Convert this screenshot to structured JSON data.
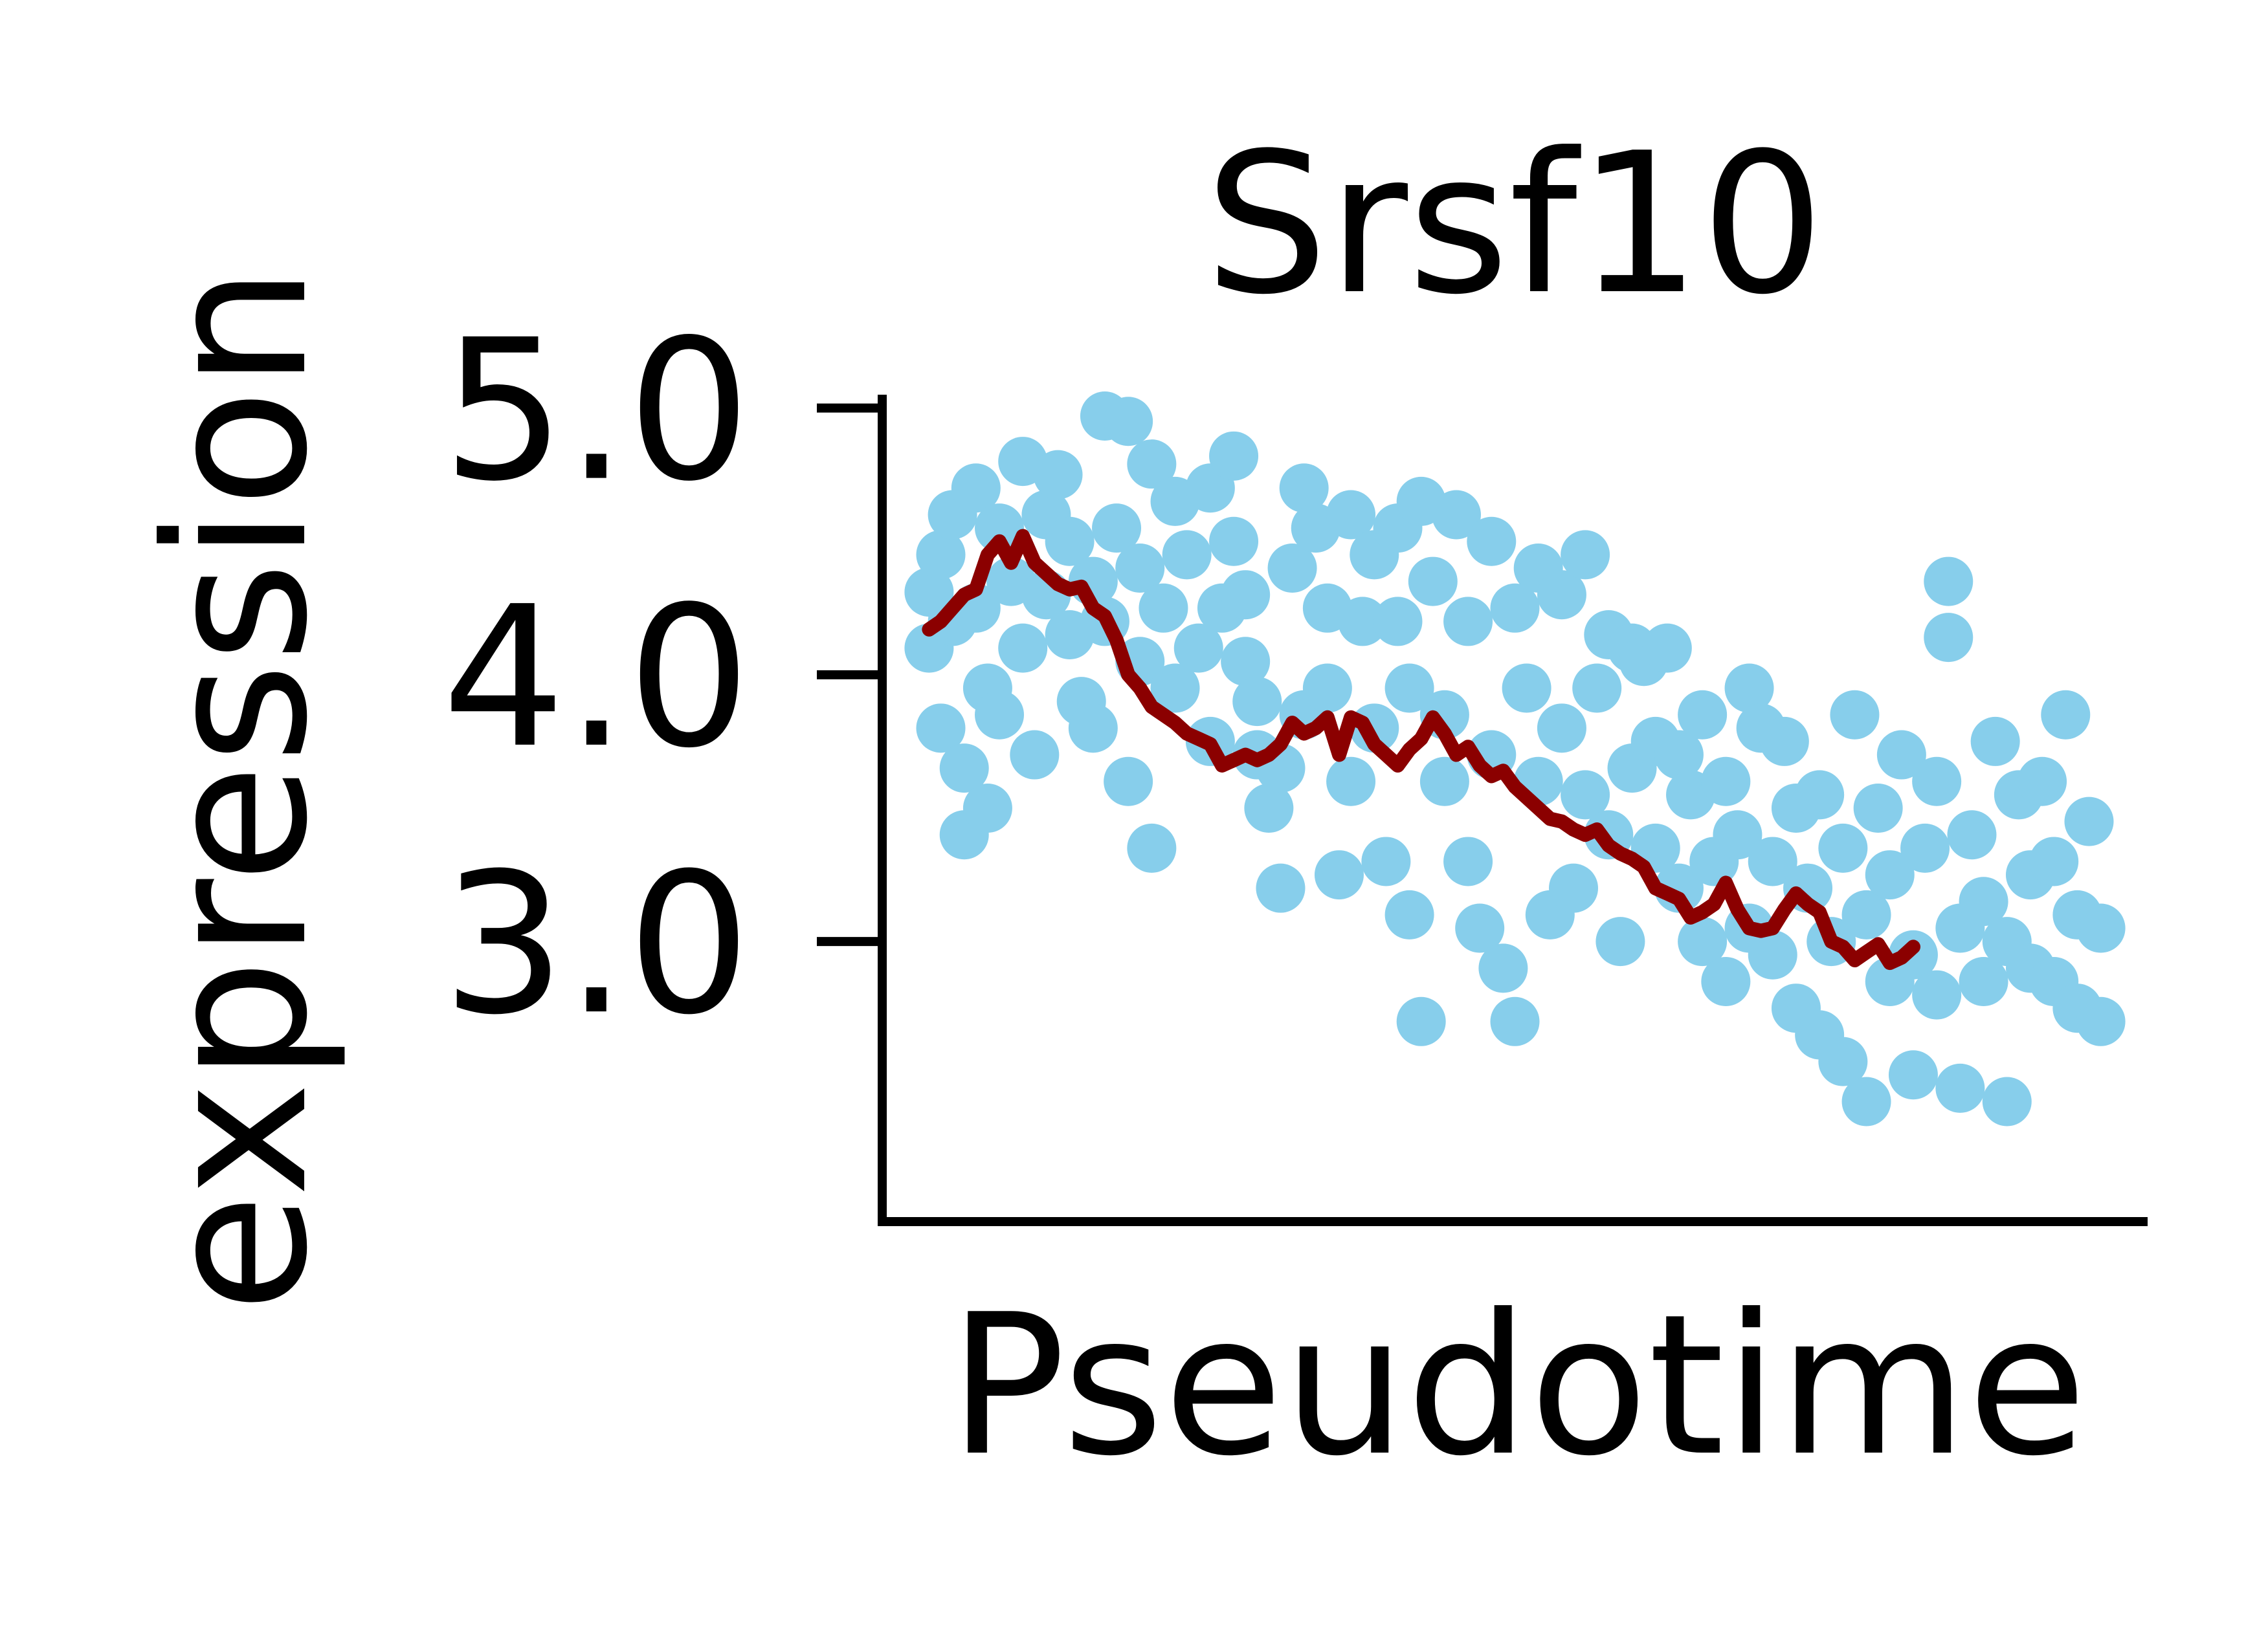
{
  "chart_data": {
    "type": "scatter",
    "title": "Srsf10",
    "xlabel": "Pseudotime",
    "ylabel": "expression",
    "yticks": [
      3.0,
      4.0,
      5.0
    ],
    "ytick_labels": [
      "3.0",
      "4.0",
      "5.0"
    ],
    "xticks": [],
    "ylim": [
      1.95,
      5.05
    ],
    "xlim": [
      -0.04,
      1.04
    ],
    "grid": false,
    "legend": "none",
    "colors": {
      "points": "#87ceeb",
      "trend": "#8b0000",
      "axis": "#000000"
    },
    "series": [
      {
        "type": "scatter",
        "points": [
          [
            0.0,
            4.31
          ],
          [
            0.0,
            4.1
          ],
          [
            0.01,
            3.8
          ],
          [
            0.01,
            4.45
          ],
          [
            0.02,
            4.6
          ],
          [
            0.02,
            4.2
          ],
          [
            0.03,
            3.65
          ],
          [
            0.03,
            3.4
          ],
          [
            0.04,
            4.7
          ],
          [
            0.04,
            4.25
          ],
          [
            0.05,
            3.95
          ],
          [
            0.05,
            3.5
          ],
          [
            0.06,
            4.55
          ],
          [
            0.06,
            3.85
          ],
          [
            0.07,
            4.35
          ],
          [
            0.08,
            4.8
          ],
          [
            0.08,
            4.1
          ],
          [
            0.09,
            3.7
          ],
          [
            0.1,
            4.6
          ],
          [
            0.1,
            4.3
          ],
          [
            0.11,
            4.75
          ],
          [
            0.12,
            4.15
          ],
          [
            0.12,
            4.5
          ],
          [
            0.13,
            3.9
          ],
          [
            0.14,
            4.35
          ],
          [
            0.14,
            3.8
          ],
          [
            0.15,
            4.97
          ],
          [
            0.15,
            4.2
          ],
          [
            0.16,
            4.55
          ],
          [
            0.17,
            4.95
          ],
          [
            0.17,
            3.6
          ],
          [
            0.18,
            4.4
          ],
          [
            0.18,
            4.05
          ],
          [
            0.19,
            3.35
          ],
          [
            0.19,
            4.79
          ],
          [
            0.2,
            4.25
          ],
          [
            0.21,
            4.65
          ],
          [
            0.21,
            3.95
          ],
          [
            0.22,
            4.45
          ],
          [
            0.23,
            4.1
          ],
          [
            0.24,
            4.7
          ],
          [
            0.24,
            3.75
          ],
          [
            0.25,
            4.25
          ],
          [
            0.26,
            4.82
          ],
          [
            0.26,
            4.5
          ],
          [
            0.27,
            4.3
          ],
          [
            0.27,
            4.05
          ],
          [
            0.28,
            3.7
          ],
          [
            0.28,
            3.9
          ],
          [
            0.29,
            3.5
          ],
          [
            0.3,
            3.2
          ],
          [
            0.3,
            3.65
          ],
          [
            0.31,
            4.4
          ],
          [
            0.32,
            4.7
          ],
          [
            0.32,
            3.85
          ],
          [
            0.33,
            4.55
          ],
          [
            0.34,
            4.25
          ],
          [
            0.34,
            3.95
          ],
          [
            0.35,
            3.25
          ],
          [
            0.36,
            4.6
          ],
          [
            0.36,
            3.6
          ],
          [
            0.37,
            4.2
          ],
          [
            0.38,
            4.45
          ],
          [
            0.38,
            3.8
          ],
          [
            0.39,
            3.3
          ],
          [
            0.4,
            4.55
          ],
          [
            0.4,
            4.2
          ],
          [
            0.41,
            3.95
          ],
          [
            0.41,
            3.1
          ],
          [
            0.42,
            2.7
          ],
          [
            0.42,
            4.65
          ],
          [
            0.43,
            4.35
          ],
          [
            0.44,
            3.85
          ],
          [
            0.44,
            3.6
          ],
          [
            0.45,
            4.6
          ],
          [
            0.46,
            4.2
          ],
          [
            0.46,
            3.3
          ],
          [
            0.47,
            3.05
          ],
          [
            0.48,
            4.5
          ],
          [
            0.48,
            3.7
          ],
          [
            0.49,
            2.9
          ],
          [
            0.5,
            4.25
          ],
          [
            0.5,
            2.7
          ],
          [
            0.51,
            3.95
          ],
          [
            0.52,
            4.4
          ],
          [
            0.52,
            3.6
          ],
          [
            0.53,
            3.1
          ],
          [
            0.54,
            4.3
          ],
          [
            0.54,
            3.8
          ],
          [
            0.55,
            3.2
          ],
          [
            0.56,
            4.45
          ],
          [
            0.56,
            3.55
          ],
          [
            0.57,
            3.95
          ],
          [
            0.58,
            4.15
          ],
          [
            0.58,
            3.4
          ],
          [
            0.59,
            3.0
          ],
          [
            0.6,
            4.1
          ],
          [
            0.6,
            3.65
          ],
          [
            0.61,
            4.05
          ],
          [
            0.62,
            3.75
          ],
          [
            0.62,
            3.35
          ],
          [
            0.63,
            4.1
          ],
          [
            0.64,
            3.7
          ],
          [
            0.64,
            3.2
          ],
          [
            0.65,
            3.55
          ],
          [
            0.66,
            3.85
          ],
          [
            0.66,
            3.0
          ],
          [
            0.67,
            3.3
          ],
          [
            0.68,
            3.6
          ],
          [
            0.68,
            2.85
          ],
          [
            0.69,
            3.4
          ],
          [
            0.7,
            3.95
          ],
          [
            0.7,
            3.05
          ],
          [
            0.71,
            3.8
          ],
          [
            0.72,
            3.3
          ],
          [
            0.72,
            2.95
          ],
          [
            0.73,
            3.75
          ],
          [
            0.74,
            3.5
          ],
          [
            0.74,
            2.75
          ],
          [
            0.75,
            3.2
          ],
          [
            0.76,
            3.55
          ],
          [
            0.76,
            2.65
          ],
          [
            0.77,
            3.0
          ],
          [
            0.78,
            3.35
          ],
          [
            0.78,
            2.55
          ],
          [
            0.79,
            3.85
          ],
          [
            0.8,
            3.1
          ],
          [
            0.8,
            2.4
          ],
          [
            0.81,
            3.5
          ],
          [
            0.82,
            2.85
          ],
          [
            0.82,
            3.25
          ],
          [
            0.83,
            3.7
          ],
          [
            0.84,
            2.95
          ],
          [
            0.84,
            2.5
          ],
          [
            0.85,
            3.35
          ],
          [
            0.86,
            2.8
          ],
          [
            0.86,
            3.6
          ],
          [
            0.87,
            4.14
          ],
          [
            0.87,
            4.35
          ],
          [
            0.88,
            3.05
          ],
          [
            0.88,
            2.45
          ],
          [
            0.89,
            3.4
          ],
          [
            0.9,
            2.85
          ],
          [
            0.9,
            3.15
          ],
          [
            0.91,
            3.75
          ],
          [
            0.92,
            2.4
          ],
          [
            0.92,
            3.0
          ],
          [
            0.93,
            3.55
          ],
          [
            0.94,
            2.9
          ],
          [
            0.94,
            3.25
          ],
          [
            0.95,
            3.6
          ],
          [
            0.96,
            2.85
          ],
          [
            0.96,
            3.3
          ],
          [
            0.97,
            3.85
          ],
          [
            0.98,
            3.1
          ],
          [
            0.98,
            2.75
          ],
          [
            0.99,
            3.45
          ],
          [
            1.0,
            3.05
          ],
          [
            1.0,
            2.7
          ]
        ]
      },
      {
        "type": "line",
        "points": [
          [
            0.0,
            4.17
          ],
          [
            0.01,
            4.2
          ],
          [
            0.02,
            4.25
          ],
          [
            0.03,
            4.3
          ],
          [
            0.04,
            4.32
          ],
          [
            0.05,
            4.45
          ],
          [
            0.06,
            4.5
          ],
          [
            0.07,
            4.42
          ],
          [
            0.08,
            4.52
          ],
          [
            0.09,
            4.42
          ],
          [
            0.1,
            4.38
          ],
          [
            0.11,
            4.34
          ],
          [
            0.12,
            4.32
          ],
          [
            0.13,
            4.33
          ],
          [
            0.14,
            4.25
          ],
          [
            0.15,
            4.22
          ],
          [
            0.16,
            4.13
          ],
          [
            0.17,
            4.0
          ],
          [
            0.18,
            3.95
          ],
          [
            0.19,
            3.88
          ],
          [
            0.2,
            3.85
          ],
          [
            0.21,
            3.82
          ],
          [
            0.22,
            3.78
          ],
          [
            0.23,
            3.76
          ],
          [
            0.24,
            3.74
          ],
          [
            0.25,
            3.66
          ],
          [
            0.26,
            3.68
          ],
          [
            0.27,
            3.7
          ],
          [
            0.28,
            3.68
          ],
          [
            0.29,
            3.7
          ],
          [
            0.3,
            3.74
          ],
          [
            0.31,
            3.82
          ],
          [
            0.32,
            3.78
          ],
          [
            0.33,
            3.8
          ],
          [
            0.34,
            3.84
          ],
          [
            0.35,
            3.7
          ],
          [
            0.36,
            3.84
          ],
          [
            0.37,
            3.82
          ],
          [
            0.38,
            3.74
          ],
          [
            0.39,
            3.7
          ],
          [
            0.4,
            3.66
          ],
          [
            0.41,
            3.72
          ],
          [
            0.42,
            3.76
          ],
          [
            0.43,
            3.84
          ],
          [
            0.44,
            3.78
          ],
          [
            0.45,
            3.7
          ],
          [
            0.46,
            3.73
          ],
          [
            0.47,
            3.66
          ],
          [
            0.48,
            3.62
          ],
          [
            0.49,
            3.64
          ],
          [
            0.5,
            3.58
          ],
          [
            0.51,
            3.54
          ],
          [
            0.52,
            3.5
          ],
          [
            0.53,
            3.46
          ],
          [
            0.54,
            3.45
          ],
          [
            0.55,
            3.42
          ],
          [
            0.56,
            3.4
          ],
          [
            0.57,
            3.42
          ],
          [
            0.58,
            3.36
          ],
          [
            0.59,
            3.33
          ],
          [
            0.6,
            3.31
          ],
          [
            0.61,
            3.28
          ],
          [
            0.62,
            3.2
          ],
          [
            0.63,
            3.18
          ],
          [
            0.64,
            3.16
          ],
          [
            0.65,
            3.09
          ],
          [
            0.66,
            3.11
          ],
          [
            0.67,
            3.14
          ],
          [
            0.68,
            3.22
          ],
          [
            0.69,
            3.12
          ],
          [
            0.7,
            3.05
          ],
          [
            0.71,
            3.04
          ],
          [
            0.72,
            3.05
          ],
          [
            0.73,
            3.12
          ],
          [
            0.74,
            3.18
          ],
          [
            0.75,
            3.14
          ],
          [
            0.76,
            3.11
          ],
          [
            0.77,
            3.0
          ],
          [
            0.78,
            2.98
          ],
          [
            0.79,
            2.93
          ],
          [
            0.8,
            2.96
          ],
          [
            0.81,
            2.99
          ],
          [
            0.82,
            2.92
          ],
          [
            0.83,
            2.94
          ],
          [
            0.84,
            2.98
          ]
        ]
      }
    ]
  }
}
